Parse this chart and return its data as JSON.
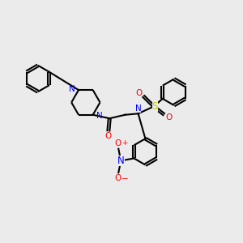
{
  "bg_color": "#ebebeb",
  "bond_color": "#000000",
  "n_color": "#0000ff",
  "o_color": "#ff0000",
  "s_color": "#cccc00",
  "lw": 1.5,
  "fs": 7.5,
  "xlim": [
    0,
    10
  ],
  "ylim": [
    0,
    10
  ],
  "figsize": [
    3.0,
    3.0
  ],
  "dpi": 100
}
